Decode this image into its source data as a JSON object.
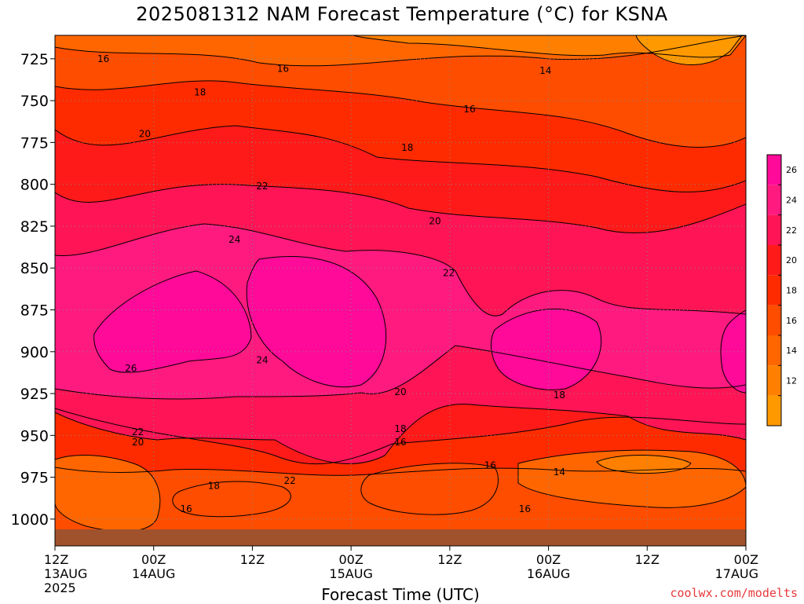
{
  "page": {
    "title": "2025081312 NAM Forecast Temperature (°C) for KSNA",
    "xlabel": "Forecast Time (UTC)",
    "credit": "coolwx.com/modelts"
  },
  "colors": {
    "bands": [
      "#ff9900",
      "#ff8000",
      "#ff6600",
      "#ff4d00",
      "#ff2b00",
      "#ff1a1a",
      "#ff1456",
      "#ff1a80",
      "#ff0a99"
    ],
    "contour_line": "#000000",
    "ground": "#a0522d",
    "grid": "#888888"
  },
  "chart_data": {
    "type": "heatmap",
    "title": "2025081312 NAM Forecast Temperature (°C) for KSNA",
    "xlabel": "Forecast Time (UTC)",
    "ylabel": "",
    "x_ticks": [
      {
        "hour": 0,
        "label": "12Z",
        "date": "13AUG",
        "year": "2025"
      },
      {
        "hour": 12,
        "label": "00Z",
        "date": "14AUG"
      },
      {
        "hour": 24,
        "label": "12Z"
      },
      {
        "hour": 36,
        "label": "00Z",
        "date": "15AUG"
      },
      {
        "hour": 48,
        "label": "12Z"
      },
      {
        "hour": 60,
        "label": "00Z",
        "date": "16AUG"
      },
      {
        "hour": 72,
        "label": "12Z"
      },
      {
        "hour": 84,
        "label": "00Z",
        "date": "17AUG"
      }
    ],
    "xlim_hours": [
      0,
      84
    ],
    "y_ticks": [
      725,
      750,
      775,
      800,
      825,
      850,
      875,
      900,
      925,
      950,
      975,
      1000
    ],
    "ylim_hPa": [
      711,
      1016
    ],
    "colorbar": {
      "labels": [
        "26",
        "24",
        "22",
        "20",
        "18",
        "16",
        "14",
        "12"
      ]
    },
    "contour_labels": [
      {
        "text": "16",
        "x": 0.07,
        "p": 725
      },
      {
        "text": "16",
        "x": 0.33,
        "p": 731
      },
      {
        "text": "14",
        "x": 0.71,
        "p": 732
      },
      {
        "text": "18",
        "x": 0.21,
        "p": 745
      },
      {
        "text": "16",
        "x": 0.6,
        "p": 755
      },
      {
        "text": "20",
        "x": 0.13,
        "p": 770
      },
      {
        "text": "18",
        "x": 0.51,
        "p": 778
      },
      {
        "text": "22",
        "x": 0.3,
        "p": 801
      },
      {
        "text": "20",
        "x": 0.55,
        "p": 822
      },
      {
        "text": "24",
        "x": 0.26,
        "p": 833
      },
      {
        "text": "22",
        "x": 0.57,
        "p": 853
      },
      {
        "text": "24",
        "x": 0.3,
        "p": 905
      },
      {
        "text": "26",
        "x": 0.11,
        "p": 910
      },
      {
        "text": "20",
        "x": 0.5,
        "p": 924
      },
      {
        "text": "18",
        "x": 0.73,
        "p": 926
      },
      {
        "text": "18",
        "x": 0.5,
        "p": 946
      },
      {
        "text": "22",
        "x": 0.12,
        "p": 948
      },
      {
        "text": "16",
        "x": 0.5,
        "p": 954
      },
      {
        "text": "20",
        "x": 0.12,
        "p": 954
      },
      {
        "text": "16",
        "x": 0.63,
        "p": 968
      },
      {
        "text": "14",
        "x": 0.73,
        "p": 972
      },
      {
        "text": "18",
        "x": 0.23,
        "p": 980
      },
      {
        "text": "22",
        "x": 0.34,
        "p": 977
      },
      {
        "text": "16",
        "x": 0.19,
        "p": 994
      },
      {
        "text": "16",
        "x": 0.68,
        "p": 994
      }
    ],
    "legend": "colorbar right",
    "grid": true
  }
}
